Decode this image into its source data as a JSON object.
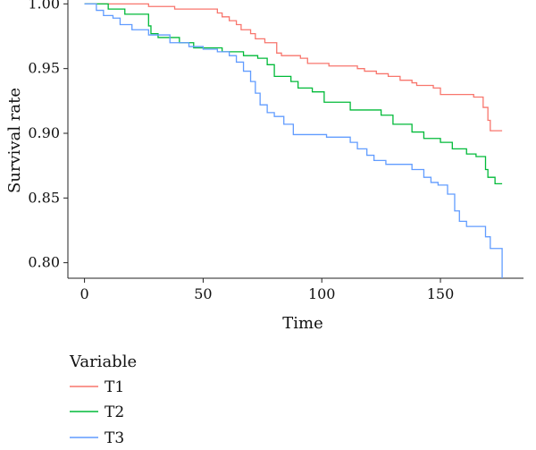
{
  "chart_data": {
    "type": "line",
    "step": true,
    "xlabel": "Time",
    "ylabel": "Survival rate",
    "xlim": [
      -7,
      185
    ],
    "ylim": [
      0.788,
      1.003
    ],
    "xticks": [
      0,
      50,
      100,
      150
    ],
    "yticks": [
      0.8,
      0.85,
      0.9,
      0.95,
      1.0
    ],
    "yticklabels": [
      "0.80",
      "0.85",
      "0.90",
      "0.95",
      "1.00"
    ],
    "grid": false,
    "legend": {
      "title": "Variable",
      "position": "bottom-left"
    },
    "series": [
      {
        "name": "T1",
        "color": "#F8766D",
        "points": [
          [
            0,
            1.0
          ],
          [
            27,
            1.0
          ],
          [
            27,
            0.998
          ],
          [
            38,
            0.998
          ],
          [
            38,
            0.996
          ],
          [
            56,
            0.996
          ],
          [
            56,
            0.993
          ],
          [
            58,
            0.993
          ],
          [
            58,
            0.99
          ],
          [
            61,
            0.99
          ],
          [
            61,
            0.987
          ],
          [
            64,
            0.987
          ],
          [
            64,
            0.984
          ],
          [
            66,
            0.984
          ],
          [
            66,
            0.98
          ],
          [
            70,
            0.98
          ],
          [
            70,
            0.977
          ],
          [
            72,
            0.977
          ],
          [
            72,
            0.973
          ],
          [
            76,
            0.973
          ],
          [
            76,
            0.97
          ],
          [
            81,
            0.97
          ],
          [
            81,
            0.962
          ],
          [
            83,
            0.962
          ],
          [
            83,
            0.96
          ],
          [
            91,
            0.96
          ],
          [
            91,
            0.958
          ],
          [
            94,
            0.958
          ],
          [
            94,
            0.954
          ],
          [
            103,
            0.954
          ],
          [
            103,
            0.952
          ],
          [
            115,
            0.952
          ],
          [
            115,
            0.95
          ],
          [
            118,
            0.95
          ],
          [
            118,
            0.948
          ],
          [
            123,
            0.948
          ],
          [
            123,
            0.946
          ],
          [
            128,
            0.946
          ],
          [
            128,
            0.944
          ],
          [
            133,
            0.944
          ],
          [
            133,
            0.941
          ],
          [
            138,
            0.941
          ],
          [
            138,
            0.939
          ],
          [
            140,
            0.939
          ],
          [
            140,
            0.937
          ],
          [
            147,
            0.937
          ],
          [
            147,
            0.935
          ],
          [
            150,
            0.935
          ],
          [
            150,
            0.93
          ],
          [
            164,
            0.93
          ],
          [
            164,
            0.928
          ],
          [
            168,
            0.928
          ],
          [
            168,
            0.92
          ],
          [
            170,
            0.92
          ],
          [
            170,
            0.91
          ],
          [
            171,
            0.91
          ],
          [
            171,
            0.902
          ],
          [
            176,
            0.902
          ]
        ]
      },
      {
        "name": "T2",
        "color": "#00BA38",
        "points": [
          [
            0,
            1.0
          ],
          [
            10,
            1.0
          ],
          [
            10,
            0.996
          ],
          [
            17,
            0.996
          ],
          [
            17,
            0.992
          ],
          [
            27,
            0.992
          ],
          [
            27,
            0.983
          ],
          [
            28,
            0.983
          ],
          [
            28,
            0.977
          ],
          [
            31,
            0.977
          ],
          [
            31,
            0.974
          ],
          [
            40,
            0.974
          ],
          [
            40,
            0.97
          ],
          [
            46,
            0.97
          ],
          [
            46,
            0.966
          ],
          [
            58,
            0.966
          ],
          [
            58,
            0.963
          ],
          [
            67,
            0.963
          ],
          [
            67,
            0.96
          ],
          [
            73,
            0.96
          ],
          [
            73,
            0.958
          ],
          [
            77,
            0.958
          ],
          [
            77,
            0.953
          ],
          [
            80,
            0.953
          ],
          [
            80,
            0.944
          ],
          [
            87,
            0.944
          ],
          [
            87,
            0.94
          ],
          [
            90,
            0.94
          ],
          [
            90,
            0.935
          ],
          [
            96,
            0.935
          ],
          [
            96,
            0.932
          ],
          [
            101,
            0.932
          ],
          [
            101,
            0.924
          ],
          [
            112,
            0.924
          ],
          [
            112,
            0.918
          ],
          [
            125,
            0.918
          ],
          [
            125,
            0.914
          ],
          [
            130,
            0.914
          ],
          [
            130,
            0.907
          ],
          [
            138,
            0.907
          ],
          [
            138,
            0.901
          ],
          [
            143,
            0.901
          ],
          [
            143,
            0.896
          ],
          [
            150,
            0.896
          ],
          [
            150,
            0.893
          ],
          [
            155,
            0.893
          ],
          [
            155,
            0.888
          ],
          [
            161,
            0.888
          ],
          [
            161,
            0.884
          ],
          [
            165,
            0.884
          ],
          [
            165,
            0.882
          ],
          [
            169,
            0.882
          ],
          [
            169,
            0.872
          ],
          [
            170,
            0.872
          ],
          [
            170,
            0.866
          ],
          [
            173,
            0.866
          ],
          [
            173,
            0.861
          ],
          [
            176,
            0.861
          ]
        ]
      },
      {
        "name": "T3",
        "color": "#619CFF",
        "points": [
          [
            0,
            1.0
          ],
          [
            5,
            1.0
          ],
          [
            5,
            0.995
          ],
          [
            8,
            0.995
          ],
          [
            8,
            0.991
          ],
          [
            12,
            0.991
          ],
          [
            12,
            0.989
          ],
          [
            15,
            0.989
          ],
          [
            15,
            0.984
          ],
          [
            20,
            0.984
          ],
          [
            20,
            0.98
          ],
          [
            27,
            0.98
          ],
          [
            27,
            0.976
          ],
          [
            36,
            0.976
          ],
          [
            36,
            0.97
          ],
          [
            44,
            0.97
          ],
          [
            44,
            0.967
          ],
          [
            50,
            0.967
          ],
          [
            50,
            0.965
          ],
          [
            56,
            0.965
          ],
          [
            56,
            0.963
          ],
          [
            61,
            0.963
          ],
          [
            61,
            0.96
          ],
          [
            64,
            0.96
          ],
          [
            64,
            0.955
          ],
          [
            67,
            0.955
          ],
          [
            67,
            0.948
          ],
          [
            70,
            0.948
          ],
          [
            70,
            0.94
          ],
          [
            72,
            0.94
          ],
          [
            72,
            0.931
          ],
          [
            74,
            0.931
          ],
          [
            74,
            0.922
          ],
          [
            77,
            0.922
          ],
          [
            77,
            0.916
          ],
          [
            80,
            0.916
          ],
          [
            80,
            0.913
          ],
          [
            84,
            0.913
          ],
          [
            84,
            0.907
          ],
          [
            88,
            0.907
          ],
          [
            88,
            0.899
          ],
          [
            102,
            0.899
          ],
          [
            102,
            0.897
          ],
          [
            112,
            0.897
          ],
          [
            112,
            0.893
          ],
          [
            115,
            0.893
          ],
          [
            115,
            0.888
          ],
          [
            119,
            0.888
          ],
          [
            119,
            0.883
          ],
          [
            122,
            0.883
          ],
          [
            122,
            0.879
          ],
          [
            127,
            0.879
          ],
          [
            127,
            0.876
          ],
          [
            138,
            0.876
          ],
          [
            138,
            0.872
          ],
          [
            143,
            0.872
          ],
          [
            143,
            0.866
          ],
          [
            146,
            0.866
          ],
          [
            146,
            0.862
          ],
          [
            149,
            0.862
          ],
          [
            149,
            0.86
          ],
          [
            153,
            0.86
          ],
          [
            153,
            0.853
          ],
          [
            156,
            0.853
          ],
          [
            156,
            0.84
          ],
          [
            158,
            0.84
          ],
          [
            158,
            0.832
          ],
          [
            161,
            0.832
          ],
          [
            161,
            0.828
          ],
          [
            169,
            0.828
          ],
          [
            169,
            0.82
          ],
          [
            171,
            0.82
          ],
          [
            171,
            0.811
          ],
          [
            176,
            0.811
          ],
          [
            176,
            0.788
          ]
        ]
      }
    ]
  }
}
